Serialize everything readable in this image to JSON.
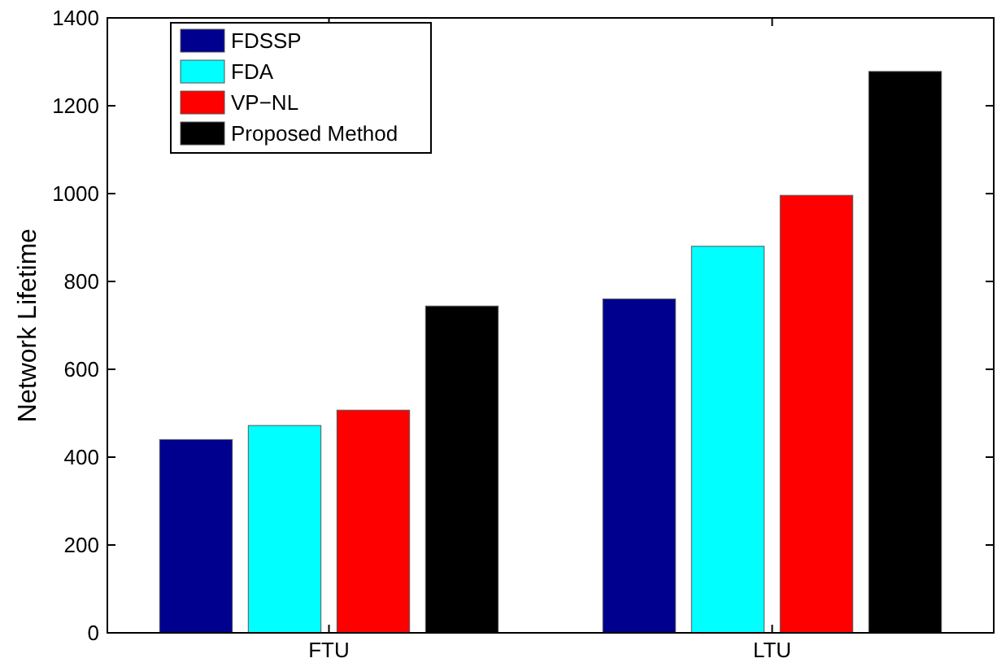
{
  "chart_data": {
    "type": "bar",
    "ylabel": "Network Lifetime",
    "categories": [
      "FTU",
      "LTU"
    ],
    "series": [
      {
        "name": "FDSSP",
        "color": "#00008f",
        "values": [
          440,
          760
        ]
      },
      {
        "name": "FDA",
        "color": "#00ffff",
        "values": [
          472,
          880
        ]
      },
      {
        "name": "VP−NL",
        "color": "#ff0000",
        "values": [
          507,
          996
        ]
      },
      {
        "name": "Proposed Method",
        "color": "#000000",
        "values": [
          744,
          1278
        ]
      }
    ],
    "ylim": [
      0,
      1400
    ],
    "yticks": [
      0,
      200,
      400,
      600,
      800,
      1000,
      1200,
      1400
    ],
    "legend": "top left",
    "grid": false
  }
}
